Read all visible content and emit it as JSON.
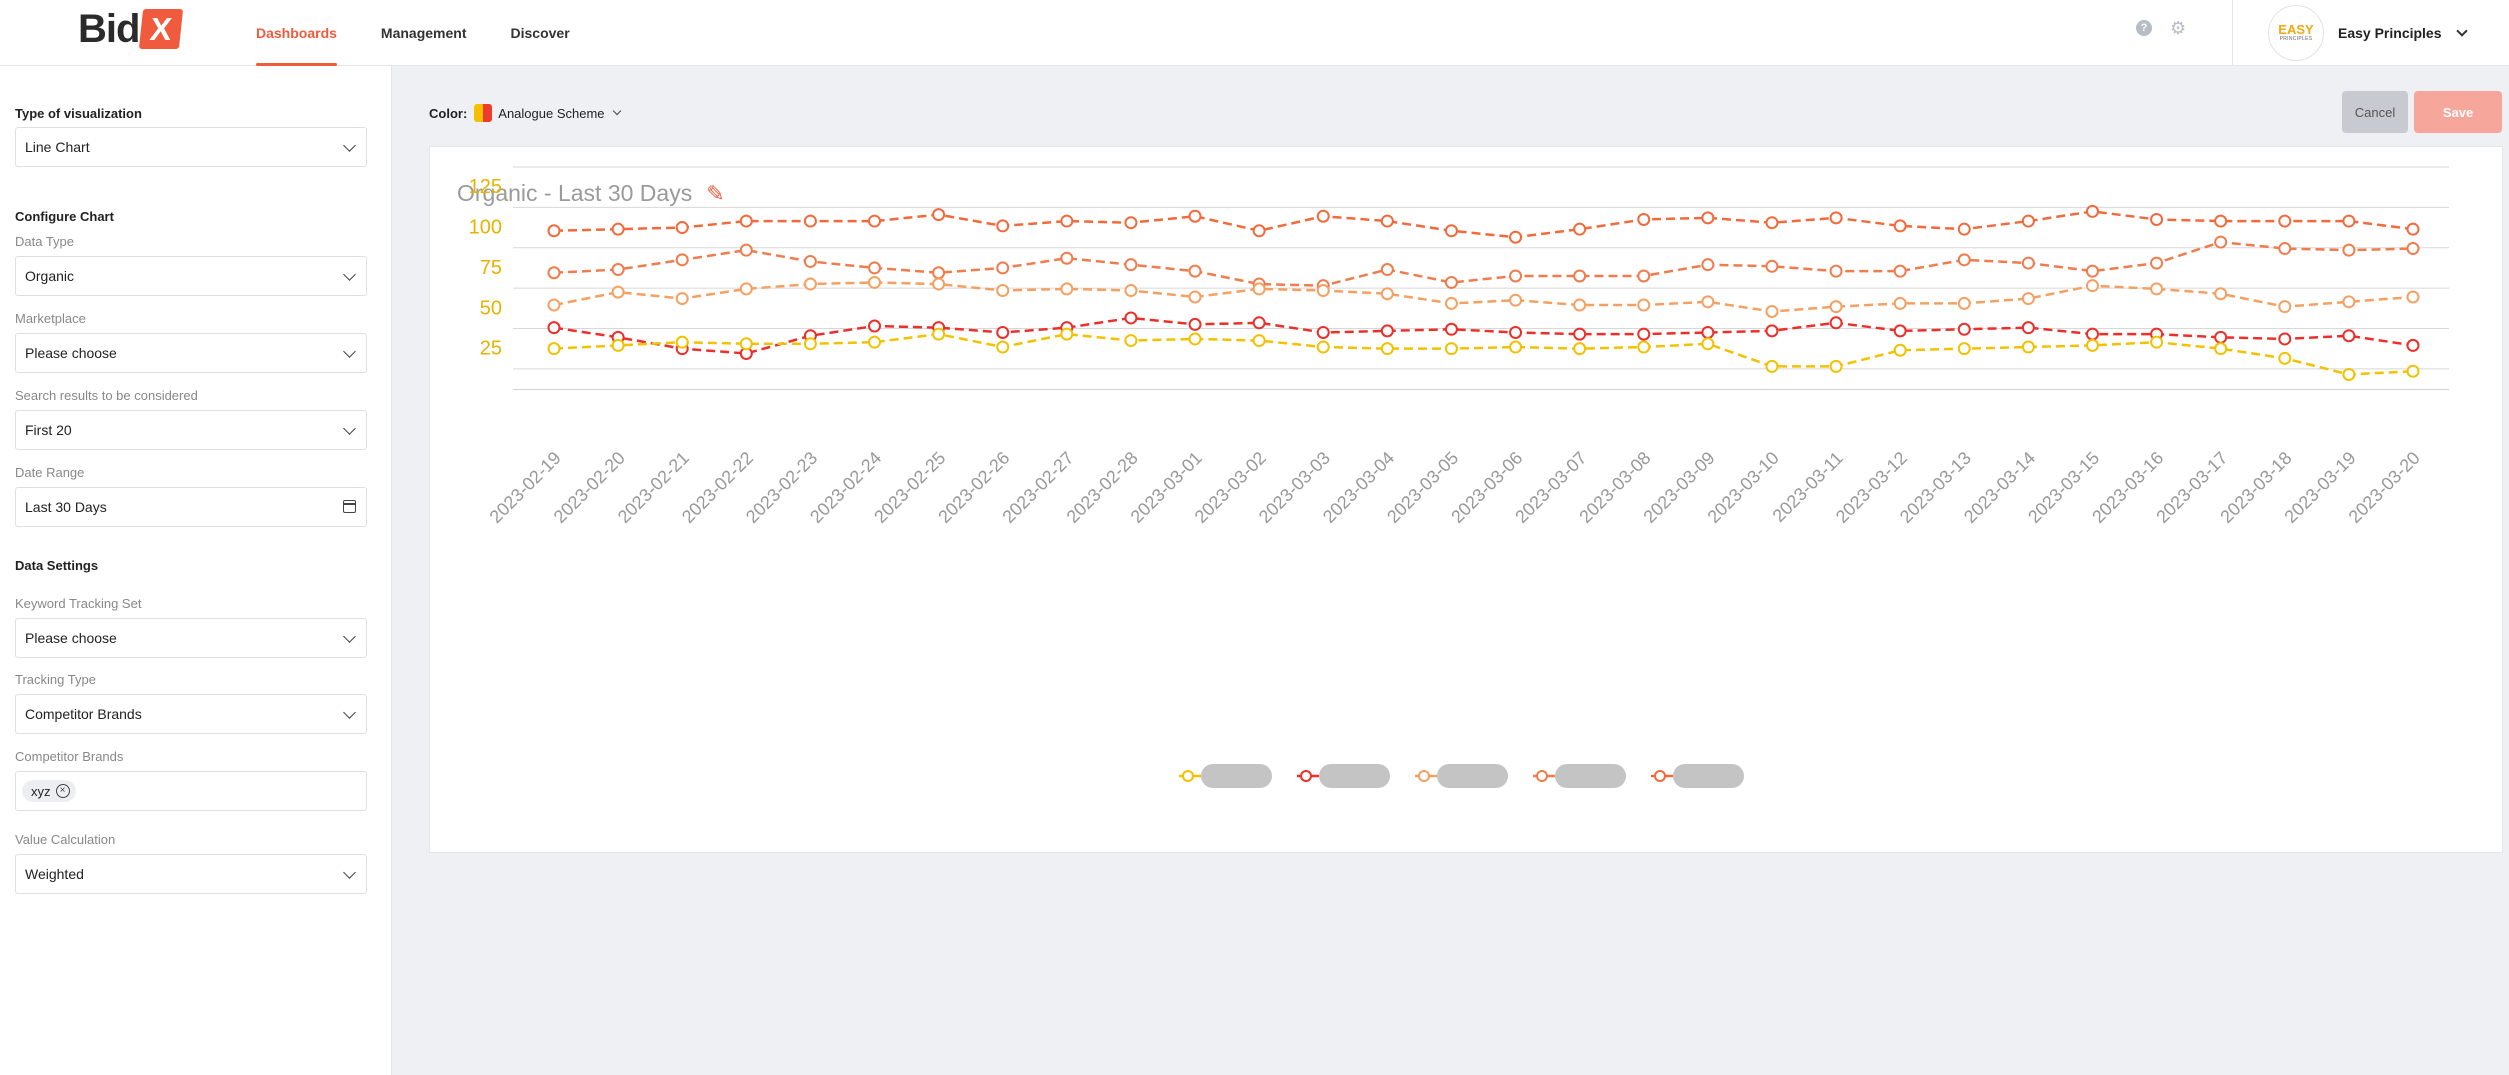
{
  "header": {
    "logo_text": "Bid",
    "logo_mark": "X",
    "nav": [
      "Dashboards",
      "Management",
      "Discover"
    ],
    "help_icon": "?",
    "account_name": "Easy Principles",
    "avatar_line1": "EASY",
    "avatar_line2": "PRINCIPLES"
  },
  "sidebar": {
    "type_section": "Type of visualization",
    "type_value": "Line Chart",
    "configure_section": "Configure Chart",
    "data_type_label": "Data Type",
    "data_type_value": "Organic",
    "marketplace_label": "Marketplace",
    "marketplace_value": "Please choose",
    "search_results_label": "Search results to be considered",
    "search_results_value": "First 20",
    "date_range_label": "Date Range",
    "date_range_value": "Last 30 Days",
    "data_settings_section": "Data Settings",
    "keyword_set_label": "Keyword Tracking Set",
    "keyword_set_value": "Please choose",
    "tracking_type_label": "Tracking Type",
    "tracking_type_value": "Competitor Brands",
    "competitor_brands_label": "Competitor Brands",
    "competitor_chip": "xyz",
    "value_calc_label": "Value Calculation",
    "value_calc_value": "Weighted"
  },
  "toolbar": {
    "color_label": "Color:",
    "color_value": "Analogue Scheme",
    "cancel_label": "Cancel",
    "save_label": "Save"
  },
  "card": {
    "title": "Organic - Last 30 Days"
  },
  "chart_data": {
    "type": "line",
    "title": "Organic - Last 30 Days",
    "xlabel": "",
    "ylabel": "",
    "ylim": [
      0,
      137.5
    ],
    "yticks": [
      25,
      50,
      75,
      100,
      125
    ],
    "grid": true,
    "categories": [
      "2023-02-19",
      "2023-02-20",
      "2023-02-21",
      "2023-02-22",
      "2023-02-23",
      "2023-02-24",
      "2023-02-25",
      "2023-02-26",
      "2023-02-27",
      "2023-02-28",
      "2023-03-01",
      "2023-03-02",
      "2023-03-03",
      "2023-03-04",
      "2023-03-05",
      "2023-03-06",
      "2023-03-07",
      "2023-03-08",
      "2023-03-09",
      "2023-03-10",
      "2023-03-11",
      "2023-03-12",
      "2023-03-13",
      "2023-03-14",
      "2023-03-15",
      "2023-03-16",
      "2023-03-17",
      "2023-03-18",
      "2023-03-19",
      "2023-03-20"
    ],
    "series": [
      {
        "name": "",
        "color": "#f26a3c",
        "values": [
          98,
          99,
          100,
          104,
          104,
          104,
          108,
          101,
          104,
          103,
          107,
          98,
          107,
          104,
          98,
          94,
          99,
          105,
          106,
          103,
          106,
          101,
          99,
          104,
          110,
          105,
          104,
          104,
          104,
          99
        ]
      },
      {
        "name": "",
        "color": "#f07c4e",
        "values": [
          72,
          74,
          80,
          86,
          79,
          75,
          72,
          75,
          81,
          77,
          73,
          65,
          64,
          74,
          66,
          70,
          70,
          70,
          77,
          76,
          73,
          73,
          80,
          78,
          73,
          78,
          91,
          87,
          86,
          87
        ]
      },
      {
        "name": "",
        "color": "#f5a063",
        "values": [
          52,
          60,
          56,
          62,
          65,
          66,
          65,
          61,
          62,
          61,
          57,
          62,
          61,
          59,
          53,
          55,
          52,
          52,
          54,
          48,
          51,
          53,
          53,
          56,
          64,
          62,
          59,
          51,
          54,
          57
        ]
      },
      {
        "name": "",
        "color": "#ec2f2a",
        "values": [
          38,
          32,
          25,
          22,
          33,
          39,
          38,
          35,
          38,
          44,
          40,
          41,
          35,
          36,
          37,
          35,
          34,
          34,
          35,
          36,
          41,
          36,
          37,
          38,
          34,
          34,
          32,
          31,
          33,
          27
        ]
      },
      {
        "name": "",
        "color": "#f2c200",
        "values": [
          25,
          27,
          29,
          28,
          28,
          29,
          34,
          26,
          34,
          30,
          31,
          30,
          26,
          25,
          25,
          26,
          25,
          26,
          28,
          14,
          14,
          24,
          25,
          26,
          27,
          29,
          25,
          19,
          9,
          11
        ]
      }
    ],
    "legend_position": "bottom-center"
  }
}
